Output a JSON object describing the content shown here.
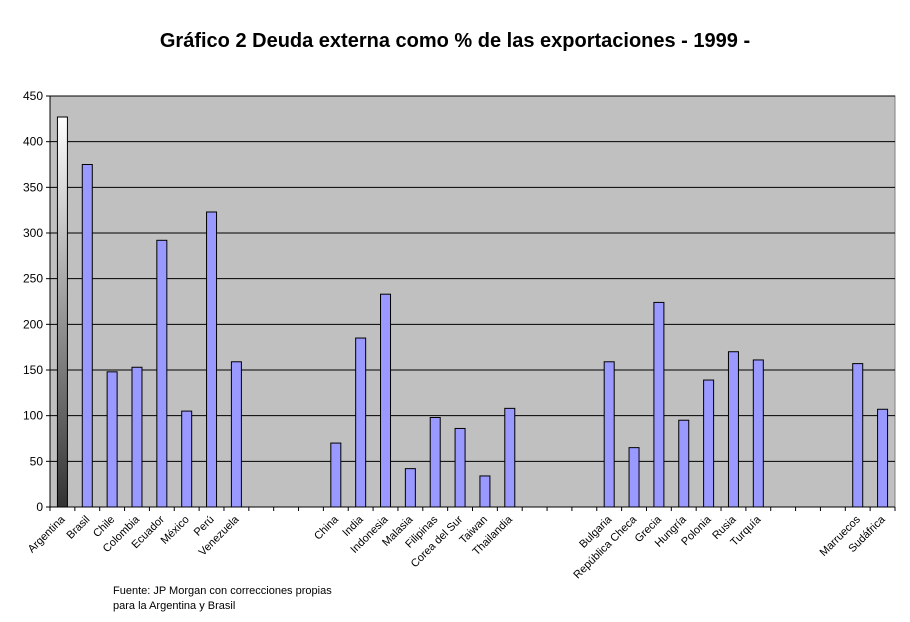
{
  "chart_data": {
    "type": "bar",
    "title": "Gráfico 2 Deuda externa como % de las exportaciones - 1999 -",
    "xlabel": "",
    "ylabel": "",
    "ylim": [
      0,
      450
    ],
    "yticks": [
      0,
      50,
      100,
      150,
      200,
      250,
      300,
      350,
      400,
      450
    ],
    "grid": true,
    "legend": "none",
    "categories": [
      "Argentina",
      "Brasil",
      "Chile",
      "Colombia",
      "Ecuador",
      "México",
      "Perú",
      "Venezuela",
      "",
      "",
      "",
      "China",
      "India",
      "Indonesia",
      "Malasia",
      "Filipinas",
      "Corea del Sur",
      "Taiwan",
      "Thailandia",
      "",
      "",
      "",
      "Bulgaria",
      "República Checa",
      "Grecia",
      "Hungría",
      "Polonia",
      "Rusia",
      "Turquía",
      "",
      "",
      "",
      "Marruecos",
      "Sudáfrica"
    ],
    "values": [
      427,
      375,
      148,
      153,
      292,
      105,
      323,
      159,
      null,
      null,
      null,
      70,
      185,
      233,
      42,
      98,
      86,
      34,
      108,
      null,
      null,
      null,
      159,
      65,
      224,
      95,
      139,
      170,
      161,
      null,
      null,
      null,
      157,
      107
    ],
    "highlight_index": 0,
    "colors": {
      "bar_fill": "#9999FF",
      "bar_stroke": "#000000",
      "plot_background": "#C0C0C0",
      "highlight_light": "#FFFFFF",
      "highlight_dark": "#333333"
    }
  },
  "source_note": {
    "line1": "Fuente: JP Morgan con correcciones propias",
    "line2": "para la Argentina y Brasil"
  }
}
